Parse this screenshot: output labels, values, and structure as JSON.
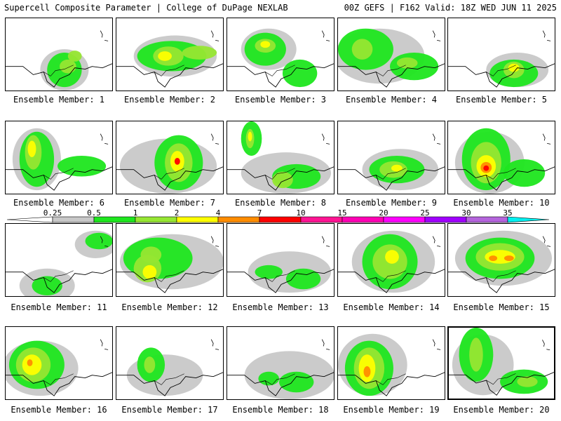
{
  "header": {
    "left": "Supercell Composite Parameter | College of DuPage NEXLAB",
    "right": "00Z GEFS | F162 Valid: 18Z WED JUN 11 2025"
  },
  "legend": {
    "levels": [
      {
        "label": "0.25",
        "color": "#c8c8c8"
      },
      {
        "label": "0.5",
        "color": "#1ee61e"
      },
      {
        "label": "1",
        "color": "#96e632"
      },
      {
        "label": "2",
        "color": "#ffff00"
      },
      {
        "label": "4",
        "color": "#ff8c00"
      },
      {
        "label": "7",
        "color": "#ff0000"
      },
      {
        "label": "10",
        "color": "#ff1493"
      },
      {
        "label": "15",
        "color": "#ff00b4"
      },
      {
        "label": "20",
        "color": "#ff00ff"
      },
      {
        "label": "25",
        "color": "#a000ff"
      },
      {
        "label": "30",
        "color": "#b464dc"
      },
      {
        "label": "35",
        "color": "#00f0f0"
      }
    ]
  },
  "panels": [
    {
      "caption": "Ensemble Member: 1"
    },
    {
      "caption": "Ensemble Member: 2"
    },
    {
      "caption": "Ensemble Member: 3"
    },
    {
      "caption": "Ensemble Member: 4"
    },
    {
      "caption": "Ensemble Member: 5"
    },
    {
      "caption": "Ensemble Member: 6"
    },
    {
      "caption": "Ensemble Member: 7"
    },
    {
      "caption": "Ensemble Member: 8"
    },
    {
      "caption": "Ensemble Member: 9"
    },
    {
      "caption": "Ensemble Member: 10"
    },
    {
      "caption": "Ensemble Member: 11"
    },
    {
      "caption": "Ensemble Member: 12"
    },
    {
      "caption": "Ensemble Member: 13"
    },
    {
      "caption": "Ensemble Member: 14"
    },
    {
      "caption": "Ensemble Member: 15"
    },
    {
      "caption": "Ensemble Member: 16"
    },
    {
      "caption": "Ensemble Member: 17"
    },
    {
      "caption": "Ensemble Member: 18"
    },
    {
      "caption": "Ensemble Member: 19"
    },
    {
      "caption": "Ensemble Member: 20"
    }
  ]
}
